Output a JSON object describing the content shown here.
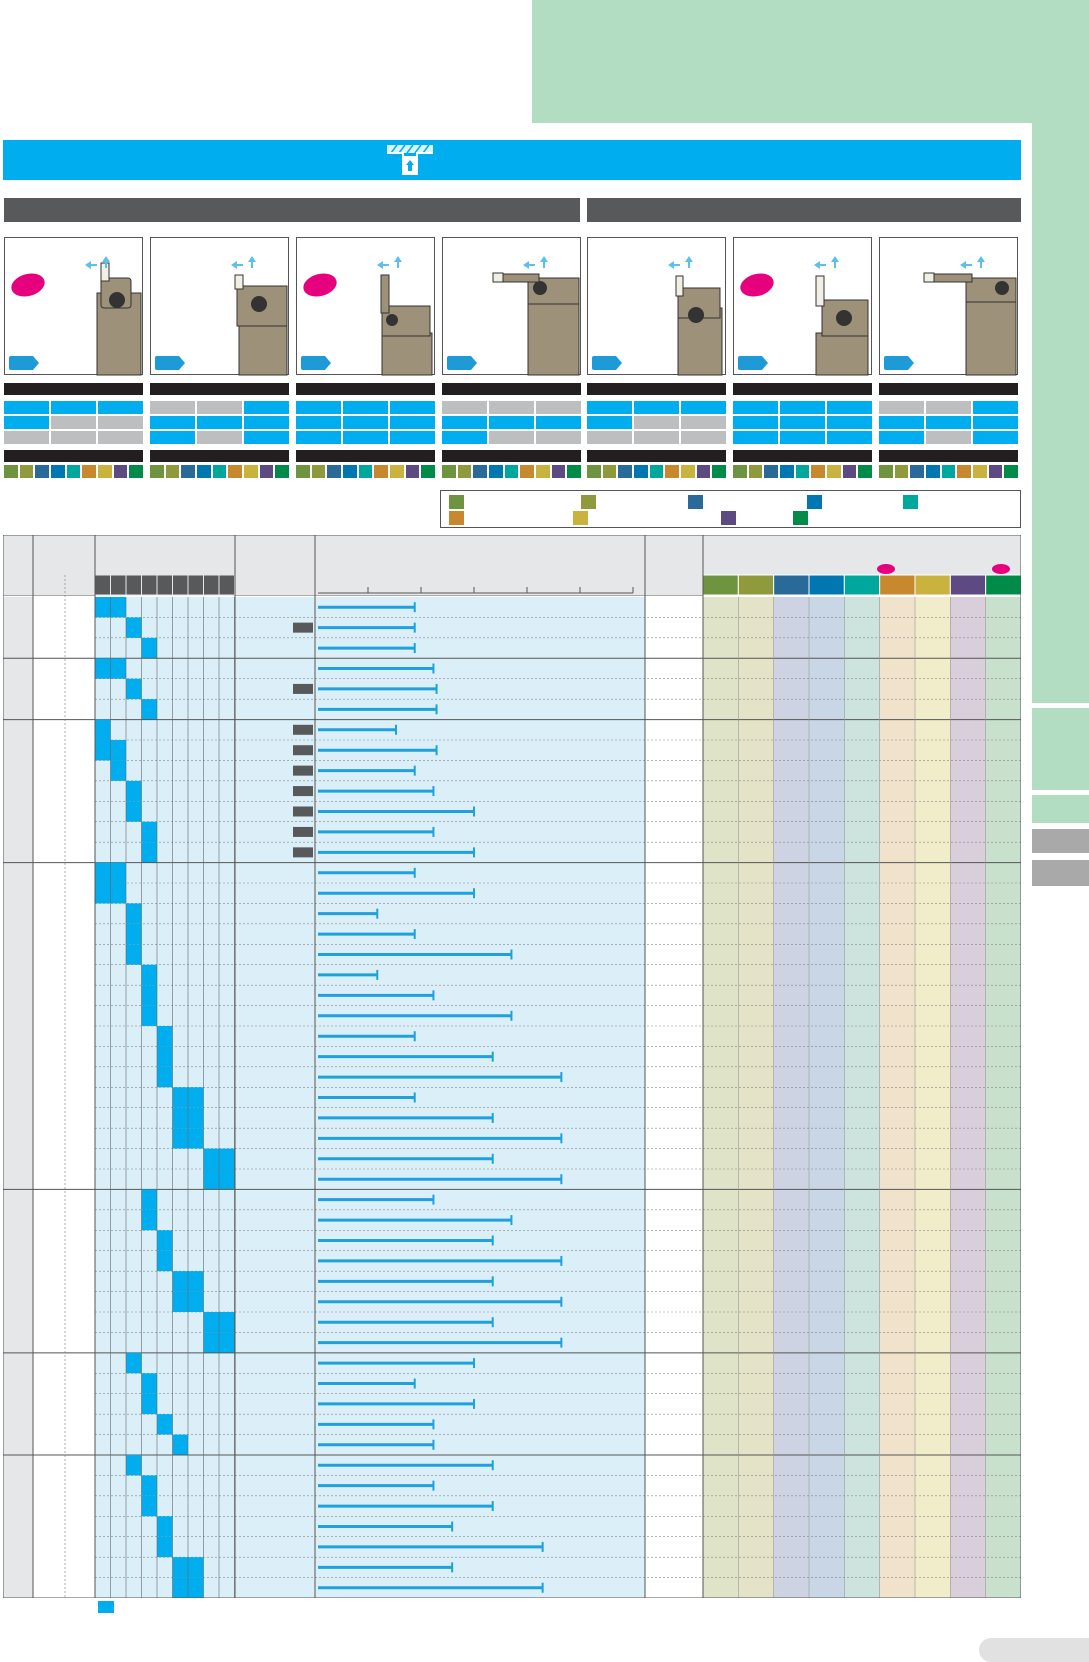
{
  "colors": {
    "page_green": "#b2ddc2",
    "cyan": "#00aeef",
    "dark_gray": "#58595b",
    "light_cell_blue": "#dbeff9",
    "mid_gray": "#bcbec0",
    "magenta": "#e6007e",
    "length_bar": "#1ea1dc"
  },
  "grade_swatches": [
    "#6f943f",
    "#8f9a3d",
    "#2a6a99",
    "#0077b0",
    "#00a79d",
    "#c7882e",
    "#c9b23e",
    "#5e4a83",
    "#008c48"
  ],
  "grade_tints": [
    "#dfe4c9",
    "#e4e3c7",
    "#cdd3e3",
    "#c9d6e6",
    "#cde3dd",
    "#f1e2cb",
    "#f1ecc9",
    "#d9cfdb",
    "#c7e1cc"
  ],
  "cards": [
    {
      "oval": true,
      "tool": "side-left",
      "cells": [
        [
          "c",
          "c",
          "c"
        ],
        [
          "c",
          "g",
          "g"
        ],
        [
          "g",
          "g",
          "g"
        ]
      ]
    },
    {
      "oval": false,
      "tool": "side-left-small",
      "cells": [
        [
          "g",
          "g",
          "c"
        ],
        [
          "c",
          "c",
          "c"
        ],
        [
          "c",
          "g",
          "c"
        ]
      ]
    },
    {
      "oval": true,
      "tool": "side-tall",
      "cells": [
        [
          "c",
          "c",
          "c"
        ],
        [
          "c",
          "c",
          "c"
        ],
        [
          "c",
          "c",
          "c"
        ]
      ]
    },
    {
      "oval": false,
      "tool": "blade-left",
      "cells": [
        [
          "g",
          "g",
          "g"
        ],
        [
          "c",
          "c",
          "c"
        ],
        [
          "c",
          "g",
          "g"
        ]
      ]
    },
    {
      "oval": false,
      "tool": "straight",
      "cells": [
        [
          "c",
          "c",
          "c"
        ],
        [
          "c",
          "g",
          "g"
        ],
        [
          "g",
          "g",
          "g"
        ]
      ]
    },
    {
      "oval": true,
      "tool": "straight-tall",
      "cells": [
        [
          "c",
          "c",
          "c"
        ],
        [
          "c",
          "c",
          "c"
        ],
        [
          "c",
          "c",
          "c"
        ]
      ]
    },
    {
      "oval": false,
      "tool": "blade-right",
      "cells": [
        [
          "g",
          "g",
          "c"
        ],
        [
          "c",
          "c",
          "c"
        ],
        [
          "c",
          "g",
          "c"
        ]
      ]
    }
  ],
  "legend_items": [
    {
      "color": "#6f943f"
    },
    {
      "color": "#8f9a3d"
    },
    {
      "color": "#2a6a99"
    },
    {
      "color": "#0077b0"
    },
    {
      "color": "#00a79d"
    },
    {
      "color": "#c7882e"
    },
    {
      "color": "#c9b23e"
    },
    {
      "color": "#5e4a83"
    },
    {
      "color": "#008c48"
    }
  ],
  "table": {
    "rows": [
      {
        "active": [
          0,
          1
        ],
        "bar": 0.31,
        "tag": false,
        "sep": false
      },
      {
        "active": [
          2
        ],
        "bar": 0.31,
        "tag": true,
        "sep": false
      },
      {
        "active": [
          3
        ],
        "bar": 0.31,
        "tag": false,
        "sep": true
      },
      {
        "active": [
          0,
          1
        ],
        "bar": 0.37,
        "tag": false,
        "sep": false
      },
      {
        "active": [
          2
        ],
        "bar": 0.38,
        "tag": true,
        "sep": false
      },
      {
        "active": [
          3
        ],
        "bar": 0.38,
        "tag": false,
        "sep": true
      },
      {
        "active": [
          0
        ],
        "bar": 0.25,
        "tag": true,
        "sep": false
      },
      {
        "active": [
          0,
          1
        ],
        "bar": 0.38,
        "tag": true,
        "sep": false
      },
      {
        "active": [
          1
        ],
        "bar": 0.31,
        "tag": true,
        "sep": false
      },
      {
        "active": [
          2
        ],
        "bar": 0.37,
        "tag": true,
        "sep": false
      },
      {
        "active": [
          2
        ],
        "bar": 0.5,
        "tag": true,
        "sep": false
      },
      {
        "active": [
          3
        ],
        "bar": 0.37,
        "tag": true,
        "sep": false
      },
      {
        "active": [
          3
        ],
        "bar": 0.5,
        "tag": true,
        "sep": true
      },
      {
        "active": [
          0,
          1
        ],
        "bar": 0.31,
        "tag": false,
        "sep": false
      },
      {
        "active": [
          0,
          1
        ],
        "bar": 0.5,
        "tag": false,
        "sep": false
      },
      {
        "active": [
          2
        ],
        "bar": 0.19,
        "tag": false,
        "sep": false
      },
      {
        "active": [
          2
        ],
        "bar": 0.31,
        "tag": false,
        "sep": false
      },
      {
        "active": [
          2
        ],
        "bar": 0.62,
        "tag": false,
        "sep": false
      },
      {
        "active": [
          3
        ],
        "bar": 0.19,
        "tag": false,
        "sep": false
      },
      {
        "active": [
          3
        ],
        "bar": 0.37,
        "tag": false,
        "sep": false
      },
      {
        "active": [
          3
        ],
        "bar": 0.62,
        "tag": false,
        "sep": false
      },
      {
        "active": [
          4
        ],
        "bar": 0.31,
        "tag": false,
        "sep": false
      },
      {
        "active": [
          4
        ],
        "bar": 0.56,
        "tag": false,
        "sep": false
      },
      {
        "active": [
          4
        ],
        "bar": 0.78,
        "tag": false,
        "sep": false
      },
      {
        "active": [
          5,
          6
        ],
        "bar": 0.31,
        "tag": false,
        "sep": false
      },
      {
        "active": [
          5,
          6
        ],
        "bar": 0.56,
        "tag": false,
        "sep": false
      },
      {
        "active": [
          5,
          6
        ],
        "bar": 0.78,
        "tag": false,
        "sep": false
      },
      {
        "active": [
          7,
          8
        ],
        "bar": 0.56,
        "tag": false,
        "sep": false
      },
      {
        "active": [
          7,
          8
        ],
        "bar": 0.78,
        "tag": false,
        "sep": true
      },
      {
        "active": [
          3
        ],
        "bar": 0.37,
        "tag": false,
        "sep": false
      },
      {
        "active": [
          3
        ],
        "bar": 0.62,
        "tag": false,
        "sep": false
      },
      {
        "active": [
          4
        ],
        "bar": 0.56,
        "tag": false,
        "sep": false
      },
      {
        "active": [
          4
        ],
        "bar": 0.78,
        "tag": false,
        "sep": false
      },
      {
        "active": [
          5,
          6
        ],
        "bar": 0.56,
        "tag": false,
        "sep": false
      },
      {
        "active": [
          5,
          6
        ],
        "bar": 0.78,
        "tag": false,
        "sep": false
      },
      {
        "active": [
          7,
          8
        ],
        "bar": 0.56,
        "tag": false,
        "sep": false
      },
      {
        "active": [
          7,
          8
        ],
        "bar": 0.78,
        "tag": false,
        "sep": true
      },
      {
        "active": [
          2
        ],
        "bar": 0.5,
        "tag": false,
        "sep": false
      },
      {
        "active": [
          3
        ],
        "bar": 0.31,
        "tag": false,
        "sep": false
      },
      {
        "active": [
          3
        ],
        "bar": 0.5,
        "tag": false,
        "sep": false
      },
      {
        "active": [
          4
        ],
        "bar": 0.37,
        "tag": false,
        "sep": false
      },
      {
        "active": [
          5
        ],
        "bar": 0.37,
        "tag": false,
        "sep": true
      },
      {
        "active": [
          2
        ],
        "bar": 0.56,
        "tag": false,
        "sep": false
      },
      {
        "active": [
          3
        ],
        "bar": 0.37,
        "tag": false,
        "sep": false
      },
      {
        "active": [
          3
        ],
        "bar": 0.56,
        "tag": false,
        "sep": false
      },
      {
        "active": [
          4
        ],
        "bar": 0.43,
        "tag": false,
        "sep": false
      },
      {
        "active": [
          4
        ],
        "bar": 0.72,
        "tag": false,
        "sep": false
      },
      {
        "active": [
          5,
          6
        ],
        "bar": 0.43,
        "tag": false,
        "sep": false
      },
      {
        "active": [
          5,
          6
        ],
        "bar": 0.72,
        "tag": false,
        "sep": false
      }
    ]
  }
}
